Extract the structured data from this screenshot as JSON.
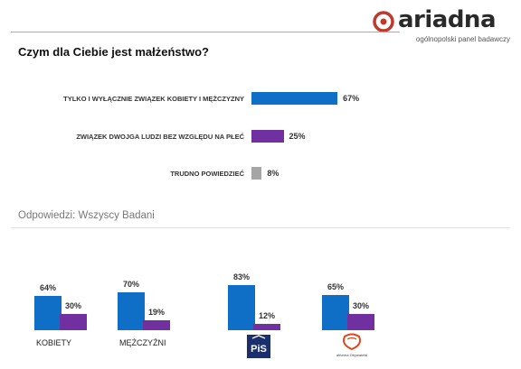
{
  "brand": {
    "name": "ariadna",
    "tagline": "ogólnopolski panel badawczy",
    "accent": "#c0392b"
  },
  "question": "Czym dla Ciebie jest małżeństwo?",
  "section_title": "Odpowiedzi: Wszyscy Badani",
  "colors": {
    "blue": "#0f6fc6",
    "purple": "#7030a0",
    "gray": "#a6a6a6"
  },
  "chart_data": [
    {
      "type": "bar",
      "orientation": "horizontal",
      "categories": [
        "TYLKO I WYŁĄCZNIE ZWIĄZEK KOBIETY I MĘŻCZYZNY",
        "ZWIĄZEK DWOJGA LUDZI BEZ WZGLĘDU NA PŁEĆ",
        "TRUDNO POWIEDZIEĆ"
      ],
      "values": [
        67,
        25,
        8
      ],
      "value_labels": [
        "67%",
        "25%",
        "8%"
      ],
      "colors": [
        "#0f6fc6",
        "#7030a0",
        "#a6a6a6"
      ],
      "xlim": [
        0,
        100
      ]
    },
    {
      "type": "bar",
      "orientation": "vertical",
      "categories": [
        "KOBIETY",
        "MĘŻCZYŹNI",
        "PiS",
        "Platforma Obywatelska"
      ],
      "series": [
        {
          "color": "#0f6fc6",
          "values": [
            64,
            70,
            83,
            65
          ],
          "labels": [
            "64%",
            "70%",
            "83%",
            "65%"
          ]
        },
        {
          "color": "#7030a0",
          "values": [
            30,
            19,
            12,
            30
          ],
          "labels": [
            "30%",
            "19%",
            "12%",
            "30%"
          ]
        }
      ],
      "ylim": [
        0,
        100
      ],
      "category_marks": [
        "text",
        "text",
        "pis-logo",
        "po-logo"
      ],
      "logo_text": {
        "pis": "PiS",
        "po": "Platforma Obywatelska"
      }
    }
  ]
}
